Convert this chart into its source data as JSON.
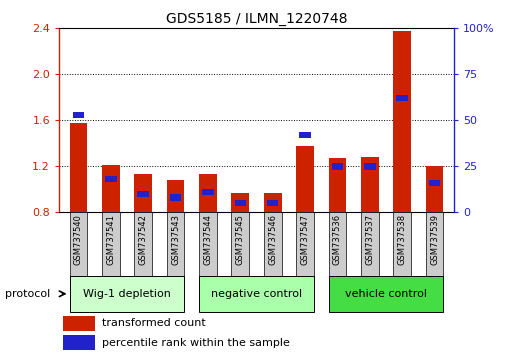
{
  "title": "GDS5185 / ILMN_1220748",
  "samples": [
    "GSM737540",
    "GSM737541",
    "GSM737542",
    "GSM737543",
    "GSM737544",
    "GSM737545",
    "GSM737546",
    "GSM737547",
    "GSM737536",
    "GSM737537",
    "GSM737538",
    "GSM737539"
  ],
  "red_values": [
    1.58,
    1.21,
    1.13,
    1.08,
    1.13,
    0.97,
    0.97,
    1.38,
    1.27,
    1.28,
    2.38,
    1.2
  ],
  "blue_values_pct": [
    53,
    18,
    10,
    8,
    11,
    5,
    5,
    42,
    25,
    25,
    62,
    16
  ],
  "ylim_left": [
    0.8,
    2.4
  ],
  "ylim_right": [
    0,
    100
  ],
  "yticks_left": [
    0.8,
    1.2,
    1.6,
    2.0,
    2.4
  ],
  "yticks_right": [
    0,
    25,
    50,
    75,
    100
  ],
  "ytick_labels_right": [
    "0",
    "25",
    "50",
    "75",
    "100%"
  ],
  "groups": [
    {
      "label": "Wig-1 depletion",
      "indices": [
        0,
        1,
        2,
        3
      ],
      "color": "#ccffcc"
    },
    {
      "label": "negative control",
      "indices": [
        4,
        5,
        6,
        7
      ],
      "color": "#aaffaa"
    },
    {
      "label": "vehicle control",
      "indices": [
        8,
        9,
        10,
        11
      ],
      "color": "#44dd44"
    }
  ],
  "bar_width": 0.55,
  "red_color": "#cc2200",
  "blue_color": "#2222cc",
  "tick_label_box_color": "#cccccc",
  "legend_red_label": "transformed count",
  "legend_blue_label": "percentile rank within the sample",
  "protocol_label": "protocol",
  "base": 0.8
}
